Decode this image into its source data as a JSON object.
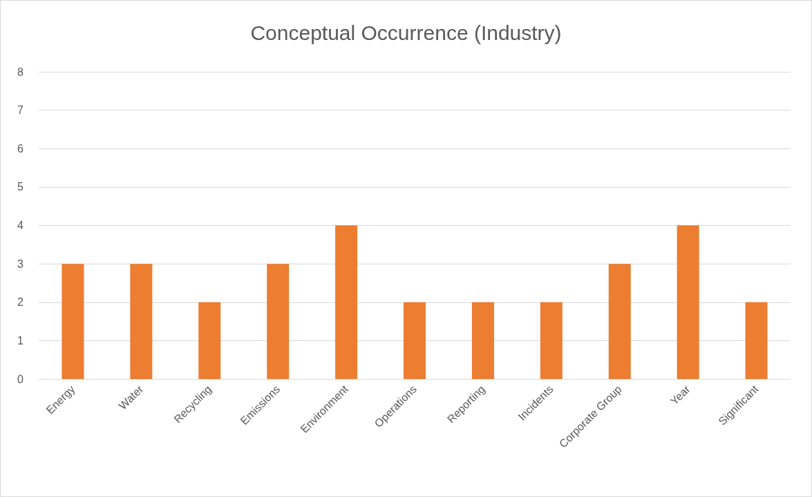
{
  "chart_data": {
    "type": "bar",
    "title": "Conceptual Occurrence (Industry)",
    "categories": [
      "Energy",
      "Water",
      "Recycling",
      "Emissions",
      "Environment",
      "Operations",
      "Reporting",
      "Incidents",
      "Corporate Group",
      "Year",
      "Significant"
    ],
    "values": [
      3,
      3,
      2,
      3,
      4,
      2,
      2,
      2,
      3,
      4,
      2
    ],
    "color": "#ed7d31",
    "ylim": [
      0,
      8
    ],
    "yticks": [
      0,
      1,
      2,
      3,
      4,
      5,
      6,
      7,
      8
    ],
    "grid": "y"
  }
}
